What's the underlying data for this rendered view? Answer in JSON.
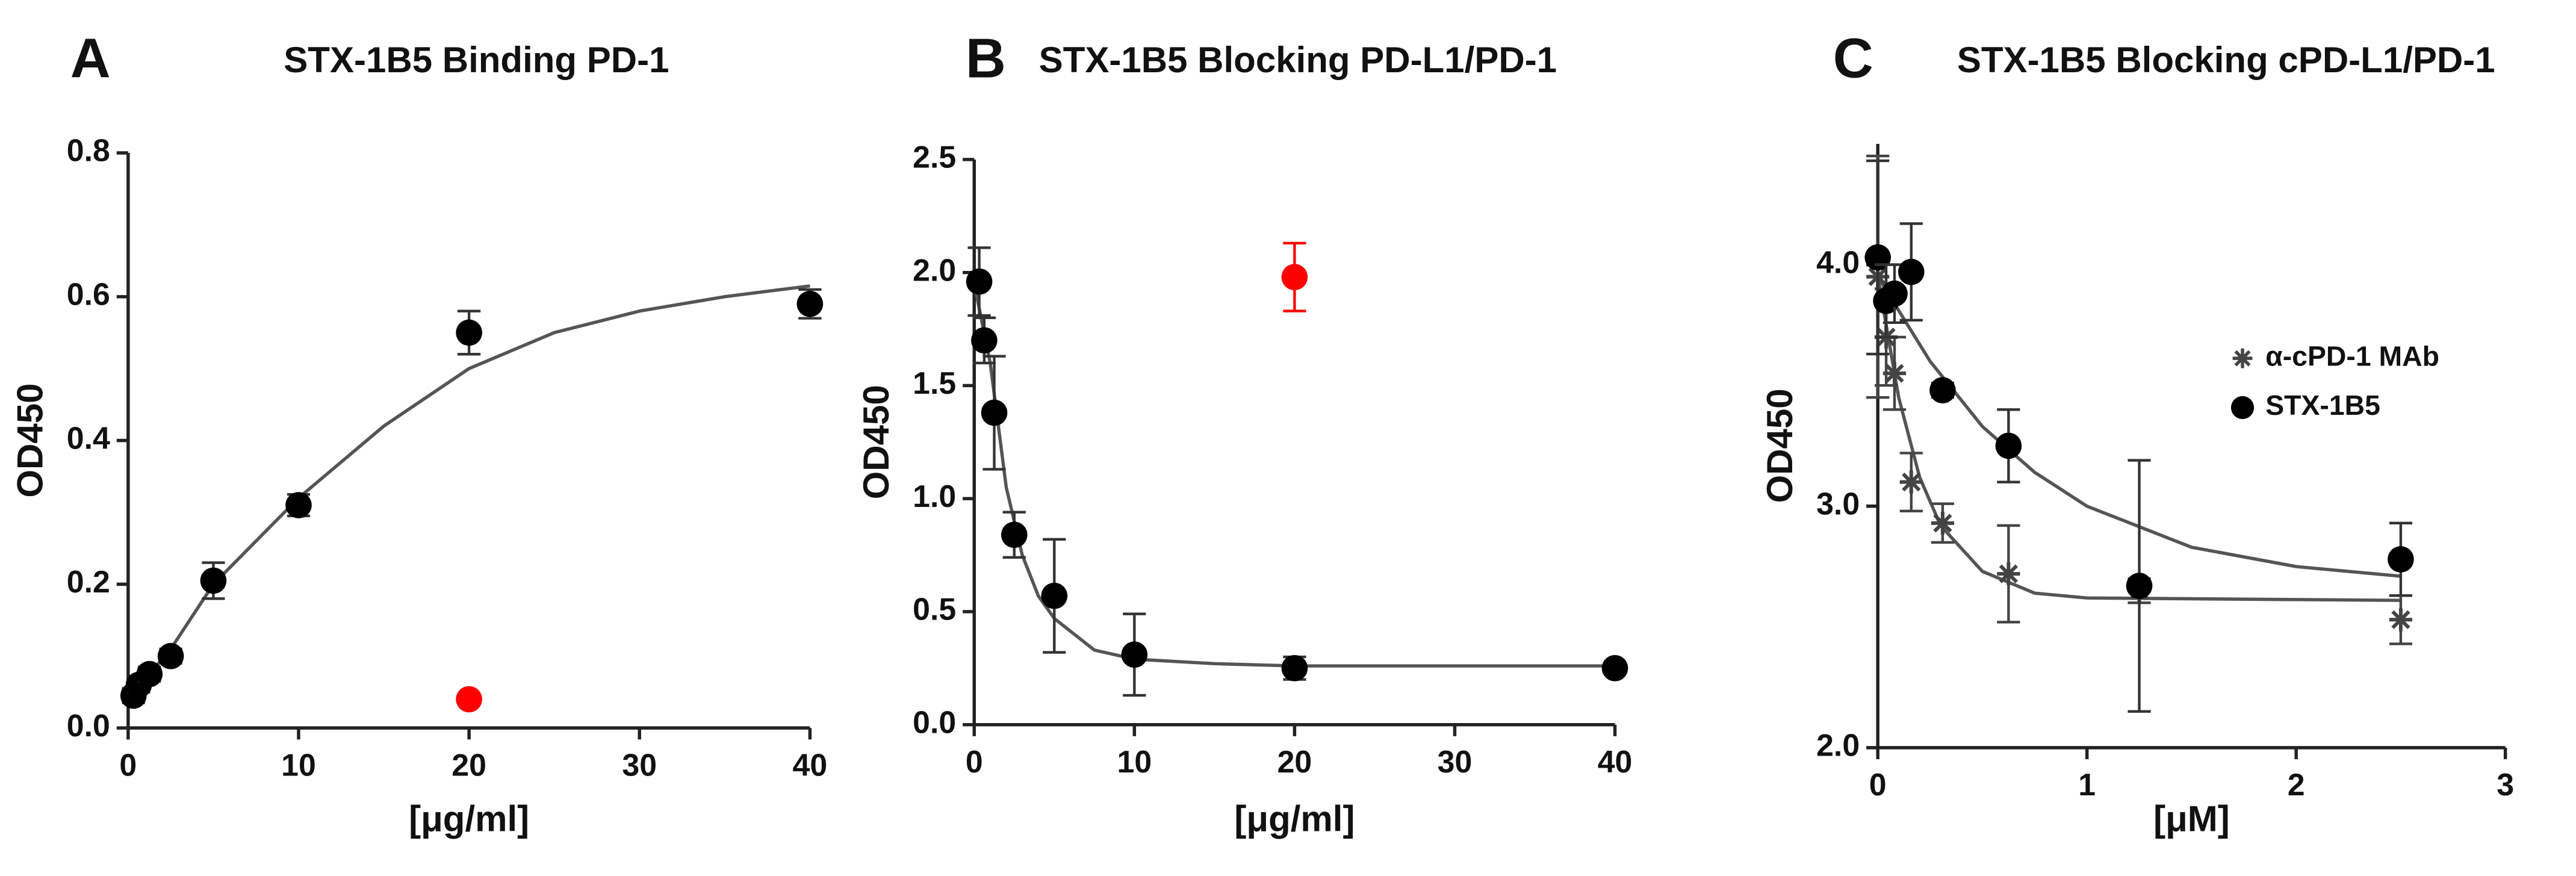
{
  "chart_data": [
    {
      "type": "scatter",
      "panel": "A",
      "title": "STX-1B5 Binding PD-1",
      "xlabel": "[μg/ml]",
      "ylabel": "OD450",
      "xlim": [
        0,
        40
      ],
      "ylim": [
        0,
        0.8
      ],
      "xticks": [
        0,
        10,
        20,
        30,
        40
      ],
      "yticks": [
        {
          "value": 0,
          "label": "0.0"
        },
        0.2,
        0.4,
        0.6,
        0.8
      ],
      "series": [
        {
          "color": "#000000",
          "marker": "circle",
          "x": [
            0.3125,
            0.625,
            1.25,
            2.5,
            5,
            10,
            20,
            40
          ],
          "values": [
            0.045,
            0.06,
            0.075,
            0.1,
            0.205,
            0.31,
            0.55,
            0.59
          ],
          "errors": [
            0.01,
            0.01,
            0.01,
            0.01,
            0.025,
            0.015,
            0.03,
            0.02
          ]
        },
        {
          "color": "#ff0000",
          "marker": "circle",
          "x": [
            20
          ],
          "values": [
            0.04
          ],
          "errors": [
            0
          ]
        }
      ],
      "fits": [
        {
          "color": "#555555",
          "x": [
            0,
            2.5,
            5,
            10,
            15,
            20,
            25,
            30,
            35,
            40
          ],
          "values": [
            0.04,
            0.11,
            0.2,
            0.32,
            0.42,
            0.5,
            0.55,
            0.58,
            0.6,
            0.615
          ]
        }
      ]
    },
    {
      "type": "scatter",
      "panel": "B",
      "title": "STX-1B5 Blocking PD-L1/PD-1",
      "xlabel": "[μg/ml]",
      "ylabel": "OD450",
      "xlim": [
        0,
        40
      ],
      "ylim": [
        0,
        2.5
      ],
      "xticks": [
        0,
        10,
        20,
        30,
        40
      ],
      "yticks": [
        {
          "value": 0,
          "label": "0.0"
        },
        0.5,
        {
          "value": 1,
          "label": "1.0"
        },
        1.5,
        {
          "value": 2,
          "label": "2.0"
        },
        2.5
      ],
      "series": [
        {
          "color": "#000000",
          "marker": "circle",
          "x": [
            0.3125,
            0.625,
            1.25,
            2.5,
            5,
            10,
            20,
            40
          ],
          "values": [
            1.96,
            1.7,
            1.38,
            0.84,
            0.57,
            0.31,
            0.25,
            0.25
          ],
          "errors": [
            0.15,
            0.1,
            0.25,
            0.1,
            0.25,
            0.18,
            0.05,
            0.02
          ]
        },
        {
          "color": "#ff0000",
          "marker": "circle",
          "x": [
            20
          ],
          "values": [
            1.98
          ],
          "errors": [
            0.15
          ]
        }
      ],
      "fits": [
        {
          "color": "#555555",
          "x": [
            0,
            1,
            2,
            3,
            4,
            5,
            7.5,
            10,
            15,
            20,
            40
          ],
          "values": [
            1.95,
            1.6,
            1.05,
            0.75,
            0.57,
            0.47,
            0.33,
            0.29,
            0.27,
            0.26,
            0.26
          ]
        }
      ]
    },
    {
      "type": "scatter",
      "panel": "C",
      "title": "STX-1B5 Blocking cPD-L1/PD-1",
      "xlabel": "[μM]",
      "ylabel": "OD450",
      "xlim": [
        0,
        3
      ],
      "ylim": [
        2,
        4.5
      ],
      "xticks": [
        0,
        1,
        2,
        3
      ],
      "yticks": [
        {
          "value": 2,
          "label": "2.0"
        },
        {
          "value": 3,
          "label": "3.0"
        },
        {
          "value": 4,
          "label": "4.0"
        }
      ],
      "series": [
        {
          "name": "α-cPD-1 MAb",
          "color": "#444444",
          "marker": "star",
          "x": [
            0,
            0.04,
            0.08,
            0.16,
            0.31,
            0.625,
            1.25,
            2.5
          ],
          "values": [
            3.95,
            3.7,
            3.55,
            3.1,
            2.93,
            2.72,
            2.65,
            2.53
          ],
          "errors": [
            0.5,
            0.2,
            0.15,
            0.12,
            0.08,
            0.2,
            0.05,
            0.1
          ]
        },
        {
          "name": "STX-1B5",
          "color": "#000000",
          "marker": "circle",
          "x": [
            0,
            0.04,
            0.08,
            0.16,
            0.31,
            0.625,
            1.25,
            2.5
          ],
          "values": [
            4.03,
            3.85,
            3.88,
            3.97,
            3.48,
            3.25,
            2.67,
            2.78
          ],
          "errors": [
            0.4,
            0.15,
            0.12,
            0.2,
            0.03,
            0.15,
            0.52,
            0.15
          ]
        }
      ],
      "fits": [
        {
          "color": "#555555",
          "x": [
            0,
            0.1,
            0.2,
            0.3,
            0.5,
            0.75,
            1,
            2.5
          ],
          "values": [
            3.95,
            3.45,
            3.12,
            2.92,
            2.73,
            2.64,
            2.62,
            2.61
          ]
        },
        {
          "color": "#555555",
          "x": [
            0,
            0.25,
            0.5,
            0.75,
            1,
            1.5,
            2,
            2.5
          ],
          "values": [
            3.95,
            3.6,
            3.33,
            3.14,
            3.0,
            2.83,
            2.75,
            2.71
          ]
        }
      ],
      "legend": "right"
    }
  ]
}
